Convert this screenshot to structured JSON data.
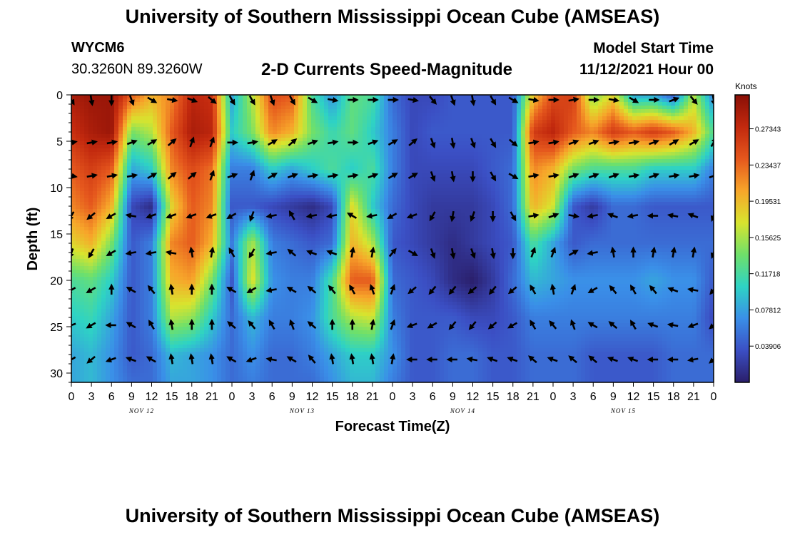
{
  "header": {
    "title_top": "University of Southern Mississippi Ocean Cube (AMSEAS)",
    "title_bottom": "University of Southern Mississippi Ocean Cube (AMSEAS)",
    "station": "WYCM6",
    "coordinates": "30.3260N  89.3260W",
    "subtitle": "2-D Currents Speed-Magnitude",
    "model_start_label": "Model Start Time",
    "model_start_value": "11/12/2021 Hour 00"
  },
  "colors": {
    "scale": [
      "#2a1e6a",
      "#3b4fc4",
      "#3a8fe8",
      "#2ed3c4",
      "#6fe06a",
      "#d8e42e",
      "#f7a52a",
      "#e5571d",
      "#c2290e",
      "#8a0f06"
    ]
  },
  "chart_data": {
    "type": "heatmap",
    "xlabel": "Forecast Time(Z)",
    "ylabel": "Depth (ft)",
    "x_range_hours": [
      0,
      96
    ],
    "ylim": [
      0,
      31
    ],
    "y_inverted": true,
    "y_ticks": [
      0,
      5,
      10,
      15,
      20,
      25,
      30
    ],
    "x_tick_labels": [
      "0",
      "3",
      "6",
      "9",
      "12",
      "15",
      "18",
      "21",
      "0",
      "3",
      "6",
      "9",
      "12",
      "15",
      "18",
      "21",
      "0",
      "3",
      "6",
      "9",
      "12",
      "15",
      "18",
      "21",
      "0",
      "3",
      "6",
      "9",
      "12",
      "15",
      "18",
      "21",
      "0"
    ],
    "day_labels": [
      {
        "label": "NOV 12",
        "hour": 10.5
      },
      {
        "label": "NOV 13",
        "hour": 34.5
      },
      {
        "label": "NOV 14",
        "hour": 58.5
      },
      {
        "label": "NOV 15",
        "hour": 82.5
      }
    ],
    "colorbar": {
      "unit": "Knots",
      "min": 0.0,
      "max": 0.31,
      "tick_labels": [
        "0.27343",
        "0.23437",
        "0.19531",
        "0.15625",
        "0.11718",
        "0.07812",
        "0.03906"
      ],
      "tick_values": [
        0.27343,
        0.23437,
        0.19531,
        0.15625,
        0.11718,
        0.07812,
        0.03906
      ]
    },
    "grid_hours": [
      0,
      3,
      6,
      9,
      12,
      15,
      18,
      21,
      24,
      27,
      30,
      33,
      36,
      39,
      42,
      45,
      48,
      51,
      54,
      57,
      60,
      63,
      66,
      69,
      72,
      75,
      78,
      81,
      84,
      87,
      90,
      93,
      96
    ],
    "grid_depths": [
      0,
      4,
      8,
      12,
      16,
      20,
      24,
      28,
      31
    ],
    "speed_knots": [
      [
        0.29,
        0.3,
        0.3,
        0.24,
        0.2,
        0.22,
        0.28,
        0.27,
        0.08,
        0.16,
        0.25,
        0.24,
        0.12,
        0.07,
        0.13,
        0.12,
        0.05,
        0.03,
        0.03,
        0.04,
        0.04,
        0.04,
        0.04,
        0.19,
        0.25,
        0.26,
        0.14,
        0.18,
        0.08,
        0.08,
        0.04,
        0.16,
        0.06
      ],
      [
        0.27,
        0.29,
        0.3,
        0.14,
        0.16,
        0.24,
        0.29,
        0.28,
        0.1,
        0.14,
        0.22,
        0.2,
        0.14,
        0.11,
        0.13,
        0.1,
        0.06,
        0.03,
        0.04,
        0.04,
        0.04,
        0.04,
        0.04,
        0.26,
        0.28,
        0.24,
        0.22,
        0.26,
        0.24,
        0.26,
        0.24,
        0.2,
        0.12
      ],
      [
        0.24,
        0.26,
        0.24,
        0.08,
        0.1,
        0.22,
        0.25,
        0.23,
        0.06,
        0.06,
        0.1,
        0.08,
        0.1,
        0.12,
        0.1,
        0.12,
        0.06,
        0.03,
        0.03,
        0.03,
        0.03,
        0.04,
        0.05,
        0.22,
        0.2,
        0.14,
        0.12,
        0.12,
        0.12,
        0.1,
        0.1,
        0.1,
        0.06
      ],
      [
        0.22,
        0.24,
        0.2,
        0.03,
        0.01,
        0.18,
        0.24,
        0.22,
        0.04,
        0.04,
        0.03,
        0.02,
        0.01,
        0.03,
        0.18,
        0.1,
        0.05,
        0.03,
        0.02,
        0.02,
        0.02,
        0.03,
        0.05,
        0.2,
        0.17,
        0.04,
        0.02,
        0.05,
        0.05,
        0.04,
        0.04,
        0.04,
        0.04
      ],
      [
        0.18,
        0.2,
        0.14,
        0.04,
        0.06,
        0.22,
        0.24,
        0.2,
        0.06,
        0.16,
        0.06,
        0.05,
        0.04,
        0.05,
        0.2,
        0.16,
        0.04,
        0.03,
        0.02,
        0.01,
        0.02,
        0.03,
        0.04,
        0.12,
        0.08,
        0.04,
        0.05,
        0.05,
        0.05,
        0.05,
        0.05,
        0.05,
        0.05
      ],
      [
        0.12,
        0.13,
        0.1,
        0.04,
        0.06,
        0.2,
        0.21,
        0.14,
        0.04,
        0.18,
        0.07,
        0.06,
        0.06,
        0.12,
        0.24,
        0.24,
        0.05,
        0.04,
        0.03,
        0.01,
        0.0,
        0.02,
        0.05,
        0.09,
        0.08,
        0.07,
        0.07,
        0.07,
        0.07,
        0.08,
        0.07,
        0.07,
        0.04
      ],
      [
        0.1,
        0.11,
        0.08,
        0.04,
        0.06,
        0.16,
        0.15,
        0.1,
        0.05,
        0.09,
        0.06,
        0.06,
        0.07,
        0.12,
        0.16,
        0.17,
        0.06,
        0.04,
        0.04,
        0.04,
        0.03,
        0.03,
        0.04,
        0.06,
        0.06,
        0.06,
        0.06,
        0.06,
        0.06,
        0.06,
        0.06,
        0.06,
        0.03
      ],
      [
        0.08,
        0.09,
        0.07,
        0.04,
        0.05,
        0.09,
        0.08,
        0.07,
        0.05,
        0.07,
        0.05,
        0.05,
        0.06,
        0.08,
        0.1,
        0.1,
        0.07,
        0.04,
        0.04,
        0.05,
        0.05,
        0.04,
        0.04,
        0.05,
        0.05,
        0.05,
        0.04,
        0.04,
        0.04,
        0.04,
        0.05,
        0.05,
        0.05
      ],
      [
        0.08,
        0.09,
        0.07,
        0.05,
        0.05,
        0.08,
        0.08,
        0.07,
        0.05,
        0.06,
        0.05,
        0.05,
        0.05,
        0.07,
        0.09,
        0.09,
        0.06,
        0.04,
        0.04,
        0.05,
        0.05,
        0.04,
        0.04,
        0.05,
        0.05,
        0.05,
        0.04,
        0.04,
        0.04,
        0.04,
        0.05,
        0.05,
        0.05
      ]
    ],
    "vector_hours": [
      0,
      3,
      6,
      9,
      12,
      15,
      18,
      21,
      24,
      27,
      30,
      33,
      36,
      39,
      42,
      45,
      48,
      51,
      54,
      57,
      60,
      63,
      66,
      69,
      72,
      75,
      78,
      81,
      84,
      87,
      90,
      93,
      96
    ],
    "vector_depths": [
      0,
      4.6,
      8.2,
      12.5,
      16.5,
      20.5,
      24.3,
      28
    ],
    "vector_direction_deg": [
      [
        150,
        170,
        180,
        160,
        120,
        100,
        110,
        130,
        150,
        150,
        160,
        150,
        120,
        100,
        90,
        90,
        90,
        100,
        140,
        160,
        170,
        150,
        120,
        100,
        90,
        80,
        90,
        100,
        120,
        90,
        70,
        140,
        170
      ],
      [
        80,
        80,
        80,
        70,
        60,
        50,
        20,
        20,
        90,
        80,
        60,
        50,
        70,
        80,
        90,
        70,
        60,
        50,
        160,
        170,
        160,
        150,
        130,
        80,
        80,
        70,
        70,
        80,
        80,
        70,
        60,
        60,
        30
      ],
      [
        100,
        80,
        80,
        80,
        60,
        50,
        50,
        20,
        70,
        20,
        60,
        70,
        80,
        80,
        80,
        70,
        60,
        60,
        160,
        170,
        180,
        150,
        120,
        80,
        80,
        70,
        70,
        70,
        80,
        70,
        80,
        80,
        70
      ],
      [
        210,
        230,
        240,
        280,
        250,
        250,
        250,
        250,
        240,
        200,
        260,
        330,
        260,
        260,
        300,
        260,
        240,
        250,
        210,
        190,
        200,
        180,
        150,
        80,
        70,
        100,
        260,
        290,
        260,
        270,
        280,
        290,
        200
      ],
      [
        200,
        210,
        240,
        260,
        260,
        280,
        350,
        10,
        330,
        210,
        260,
        310,
        290,
        290,
        10,
        10,
        40,
        120,
        160,
        170,
        160,
        170,
        180,
        20,
        20,
        60,
        260,
        350,
        0,
        10,
        10,
        10,
        200
      ],
      [
        240,
        240,
        0,
        300,
        320,
        350,
        0,
        0,
        300,
        240,
        260,
        300,
        310,
        320,
        330,
        340,
        20,
        230,
        220,
        220,
        230,
        220,
        230,
        330,
        350,
        20,
        240,
        320,
        330,
        320,
        290,
        280,
        220
      ],
      [
        250,
        240,
        270,
        300,
        330,
        350,
        0,
        0,
        310,
        320,
        330,
        340,
        310,
        0,
        0,
        10,
        20,
        250,
        240,
        220,
        220,
        230,
        240,
        330,
        320,
        340,
        300,
        310,
        330,
        290,
        280,
        250,
        230
      ],
      [
        240,
        230,
        250,
        290,
        300,
        350,
        350,
        350,
        300,
        250,
        280,
        300,
        320,
        350,
        350,
        350,
        10,
        270,
        270,
        270,
        280,
        290,
        290,
        310,
        290,
        310,
        310,
        290,
        290,
        270,
        270,
        260,
        230
      ]
    ]
  }
}
